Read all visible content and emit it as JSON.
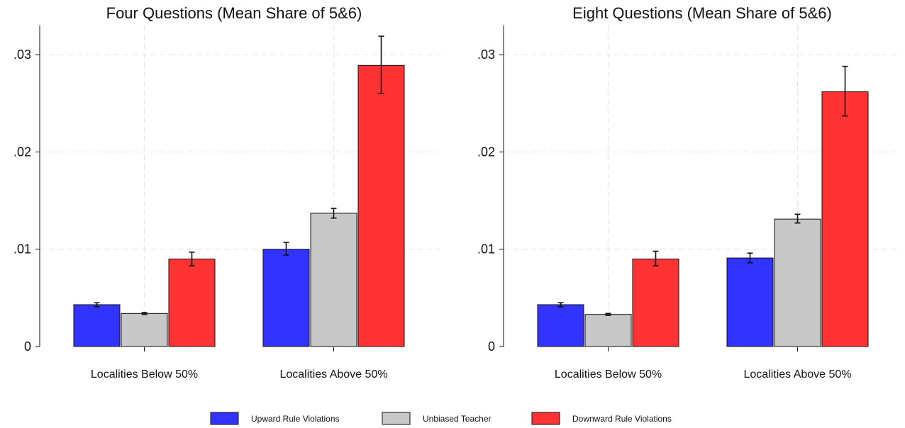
{
  "chart_data": [
    {
      "type": "bar",
      "title": "Four Questions (Mean Share of 5&6)",
      "xlabel": "",
      "ylabel": "",
      "ylim": [
        0,
        0.033
      ],
      "yticks": [
        0,
        0.01,
        0.02,
        0.03
      ],
      "ytick_labels": [
        "0",
        ".01",
        ".02",
        ".03"
      ],
      "categories": [
        "Localities Below 50%",
        "Localities Above 50%"
      ],
      "grid": true,
      "error_bars": true,
      "series": [
        {
          "name": "Upward Rule Violations",
          "color": "#3333ff",
          "values": [
            0.0043,
            0.01
          ],
          "error": [
            [
              0.0041,
              0.0045
            ],
            [
              0.0094,
              0.0107
            ]
          ]
        },
        {
          "name": "Unbiased Teacher",
          "color": "#c8c8c8",
          "values": [
            0.0034,
            0.0137
          ],
          "error": [
            [
              0.0033,
              0.0035
            ],
            [
              0.0132,
              0.0142
            ]
          ]
        },
        {
          "name": "Downward Rule Violations",
          "color": "#ff3333",
          "values": [
            0.009,
            0.0289
          ],
          "error": [
            [
              0.0083,
              0.0097
            ],
            [
              0.026,
              0.0319
            ]
          ]
        }
      ]
    },
    {
      "type": "bar",
      "title": "Eight Questions (Mean Share of 5&6)",
      "xlabel": "",
      "ylabel": "",
      "ylim": [
        0,
        0.033
      ],
      "yticks": [
        0,
        0.01,
        0.02,
        0.03
      ],
      "ytick_labels": [
        "0",
        ".01",
        ".02",
        ".03"
      ],
      "categories": [
        "Localities Below 50%",
        "Localities Above 50%"
      ],
      "grid": true,
      "error_bars": true,
      "series": [
        {
          "name": "Upward Rule Violations",
          "color": "#3333ff",
          "values": [
            0.0043,
            0.0091
          ],
          "error": [
            [
              0.0041,
              0.0045
            ],
            [
              0.0086,
              0.0096
            ]
          ]
        },
        {
          "name": "Unbiased Teacher",
          "color": "#c8c8c8",
          "values": [
            0.0033,
            0.0131
          ],
          "error": [
            [
              0.0032,
              0.0034
            ],
            [
              0.0127,
              0.0136
            ]
          ]
        },
        {
          "name": "Downward Rule Violations",
          "color": "#ff3333",
          "values": [
            0.009,
            0.0262
          ],
          "error": [
            [
              0.0083,
              0.0098
            ],
            [
              0.0237,
              0.0288
            ]
          ]
        }
      ]
    }
  ],
  "legend": {
    "position": "bottom",
    "items": [
      {
        "label": "Upward Rule Violations",
        "color": "#3333ff"
      },
      {
        "label": "Unbiased Teacher",
        "color": "#c8c8c8"
      },
      {
        "label": "Downward Rule Violations",
        "color": "#ff3333"
      }
    ]
  }
}
